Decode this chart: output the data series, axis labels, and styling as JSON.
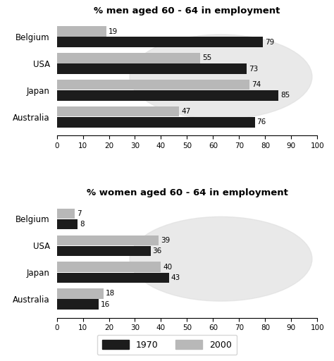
{
  "men_title": "% men aged 60 - 64 in employment",
  "women_title": "% women aged 60 - 64 in employment",
  "countries": [
    "Belgium",
    "USA",
    "Japan",
    "Australia"
  ],
  "men_1970": [
    79,
    73,
    85,
    76
  ],
  "men_2000": [
    19,
    55,
    74,
    47
  ],
  "women_1970": [
    8,
    36,
    43,
    16
  ],
  "women_2000": [
    7,
    39,
    40,
    18
  ],
  "color_1970": "#1c1c1c",
  "color_2000": "#b8b8b8",
  "xlim": [
    0,
    100
  ],
  "xticks": [
    0,
    10,
    20,
    30,
    40,
    50,
    60,
    70,
    80,
    90,
    100
  ],
  "bar_height": 0.38,
  "bar_gap": 0.02,
  "legend_1970": "1970",
  "legend_2000": "2000",
  "bg_color": "#ffffff",
  "label_fontsize": 7.5,
  "ytick_fontsize": 8.5,
  "xtick_fontsize": 7.5,
  "title_fontsize": 9.5
}
